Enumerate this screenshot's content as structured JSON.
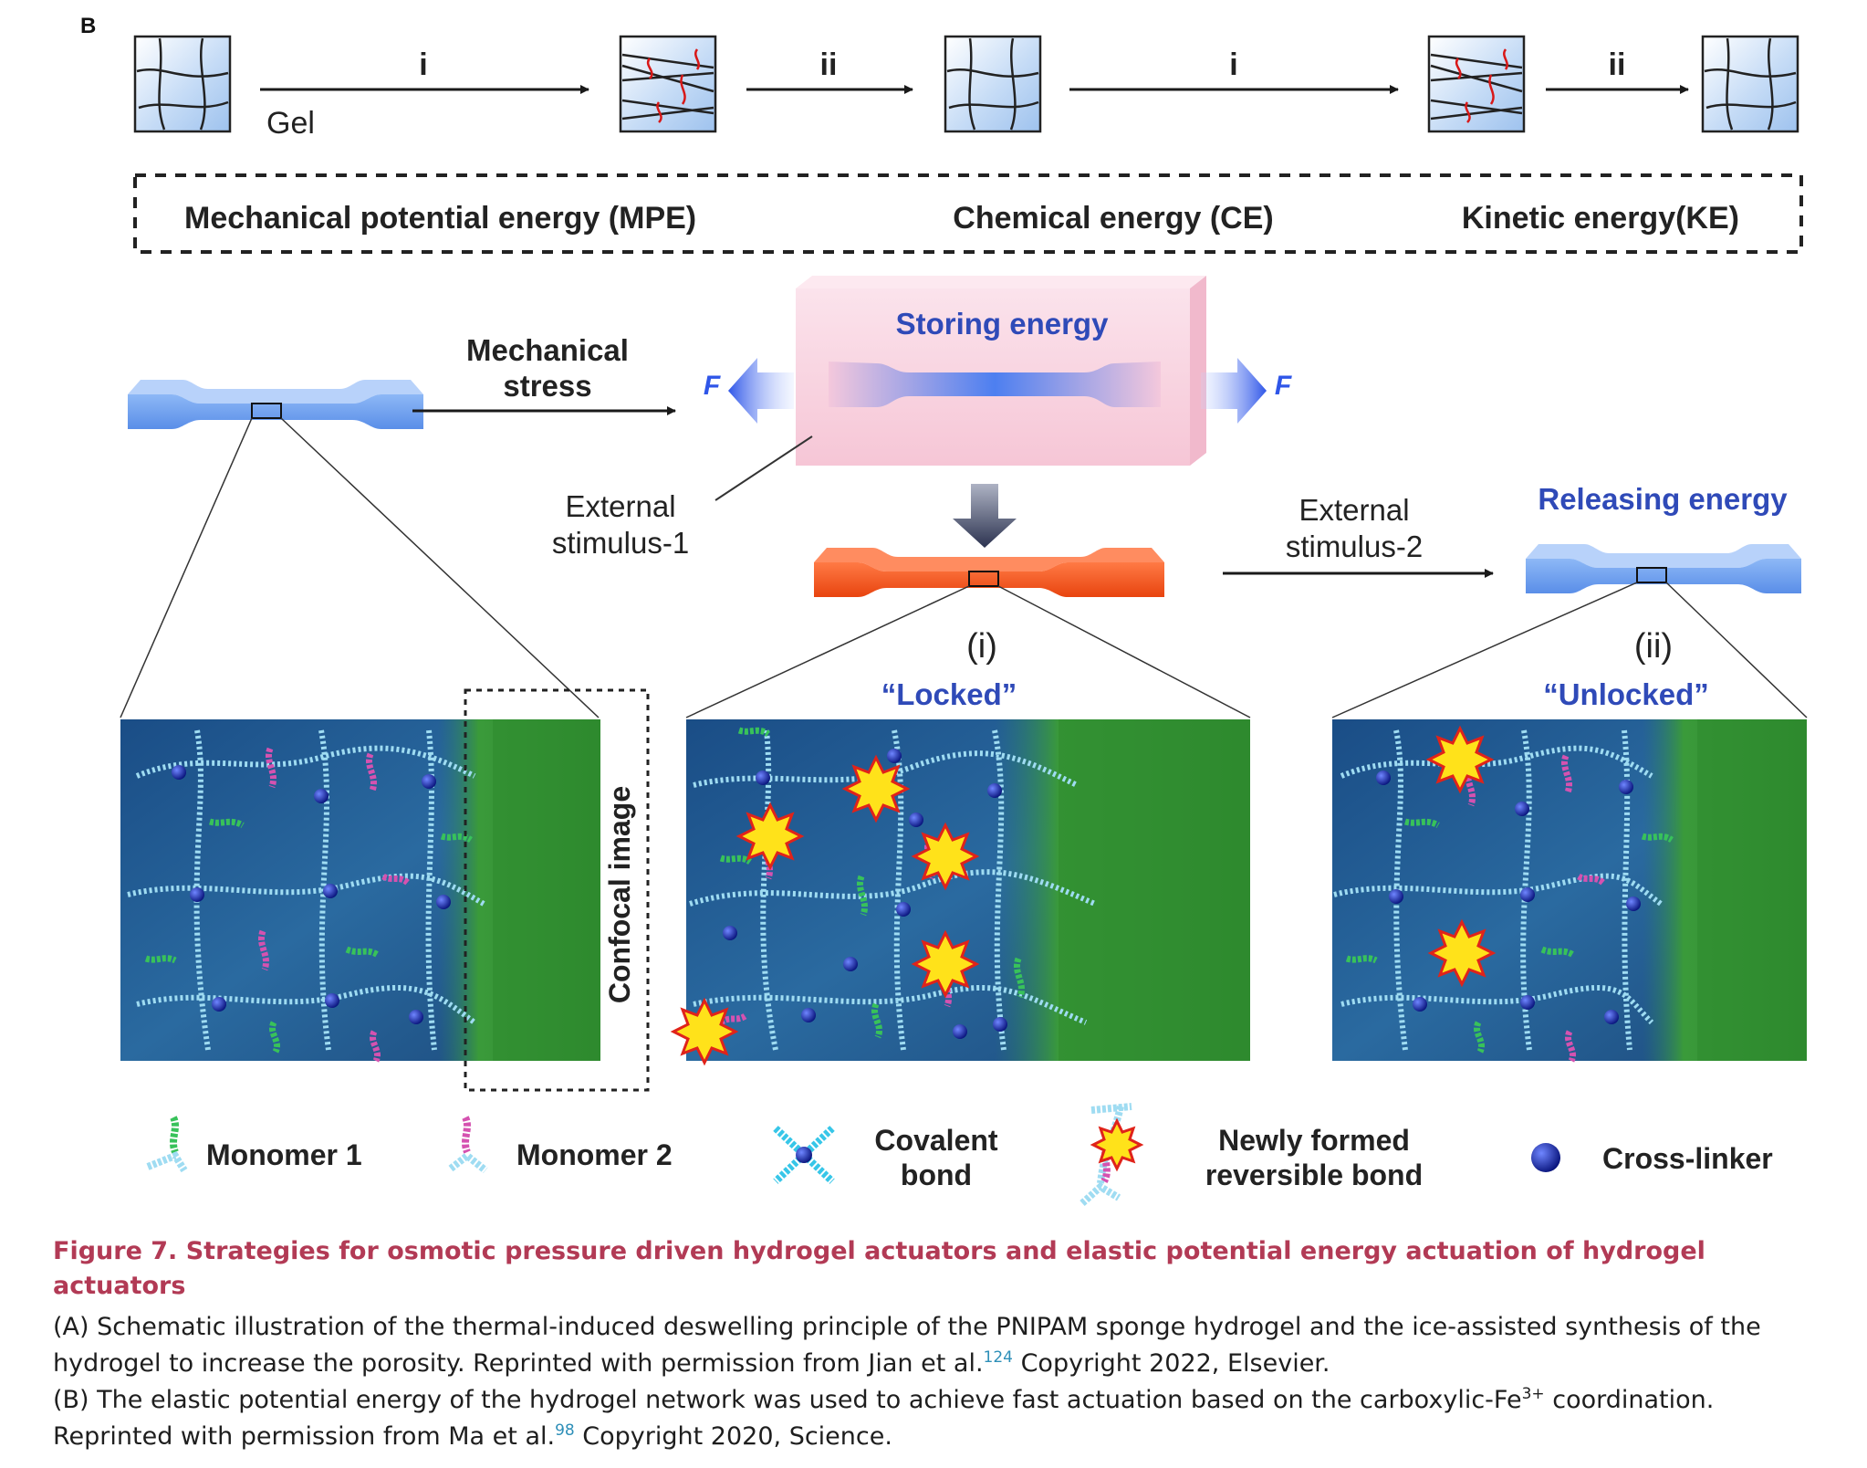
{
  "panel_label": "B",
  "top_row": {
    "gel_label": "Gel",
    "step_i": "i",
    "step_ii": "ii",
    "energy_types": [
      "Mechanical potential energy (MPE)",
      "Chemical energy (CE)",
      "Kinetic energy(KE)"
    ]
  },
  "middle": {
    "mechanical_stress_line1": "Mechanical",
    "mechanical_stress_line2": "stress",
    "storing_energy": "Storing energy",
    "force_label": "F",
    "external_stimulus_1_line1": "External",
    "external_stimulus_1_line2": "stimulus-1",
    "external_stimulus_2_line1": "External",
    "external_stimulus_2_line2": "stimulus-2",
    "releasing_energy": "Releasing energy",
    "state_i": "(i)",
    "state_ii": "(ii)",
    "locked": "“Locked”",
    "unlocked": "“Unlocked”",
    "confocal_image": "Confocal image"
  },
  "legend": {
    "monomer1": "Monomer 1",
    "monomer2": "Monomer 2",
    "covalent_line1": "Covalent",
    "covalent_line2": "bond",
    "newly_line1": "Newly formed",
    "newly_line2": "reversible bond",
    "crosslinker": "Cross-linker"
  },
  "colors": {
    "blue_gel": "#6a9cf0",
    "orange_gel": "#f2551d",
    "label_blue": "#2f4ab8",
    "caption_title": "#b23a55",
    "reference": "#2e8fb8",
    "network_bg": "#1f4f80",
    "confocal_green": "#2e8a2e",
    "chain": "#9fdcf2",
    "crosslinker": "#0d1eb0",
    "monomer1": "#38c25a",
    "monomer2": "#d552b0",
    "star": "#ffe21a"
  },
  "caption": {
    "title": "Figure 7.  Strategies for osmotic pressure driven hydrogel actuators and elastic potential energy actuation of hydrogel actuators",
    "a_text": "(A) Schematic illustration of the thermal-induced deswelling principle of the PNIPAM sponge hydrogel and the ice-assisted synthesis of the hydrogel to increase the porosity. Reprinted with permission from Jian et al.",
    "a_ref": "124",
    "a_tail": " Copyright 2022, Elsevier.",
    "b_text1": "(B) The elastic potential energy of the hydrogel network was used to achieve fast actuation based on the carboxylic-Fe",
    "b_sup": "3+",
    "b_text2": " coordination. Reprinted with permission from Ma et al.",
    "b_ref": "98",
    "b_tail": " Copyright 2020, Science."
  }
}
